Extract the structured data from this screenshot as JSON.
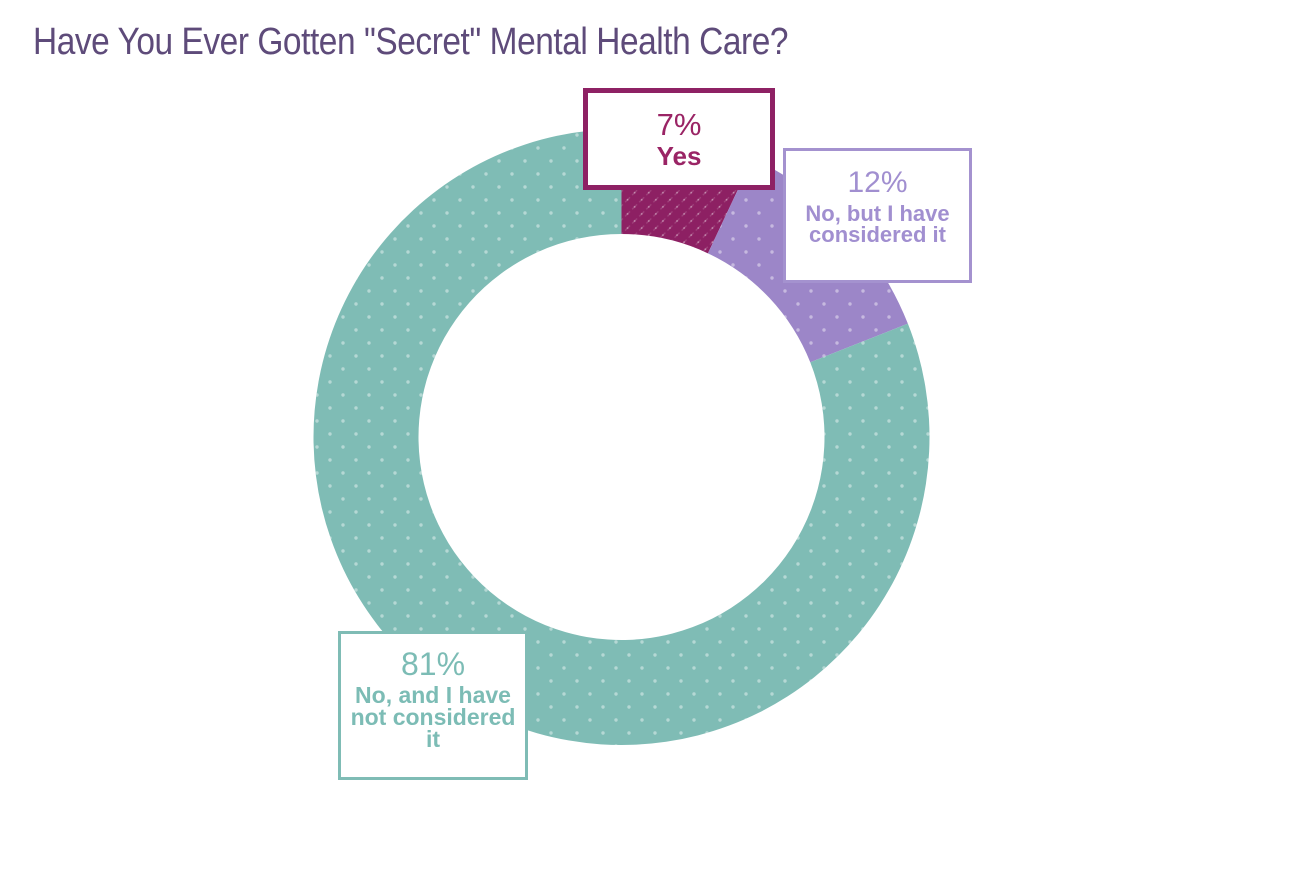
{
  "title": "Have You Ever Gotten \"Secret\" Mental Health Care?",
  "title_color": "#5e4b7a",
  "background_color": "#ffffff",
  "chart_data": {
    "type": "pie",
    "subtype": "donut",
    "title": "Have You Ever Gotten \"Secret\" Mental Health Care?",
    "start_angle_deg": 0,
    "direction": "clockwise",
    "inner_radius_ratio": 0.66,
    "legend_position": "callout-boxes-on-slices",
    "segments": [
      {
        "label": "Yes",
        "value": 7,
        "pct_label": "7%",
        "color": "#8d2063",
        "box_border_color": "#8e2164",
        "text_color": "#9a2465",
        "texture": "diagonal-hatch"
      },
      {
        "label": "No, but I have considered it",
        "value": 12,
        "pct_label": "12%",
        "color": "#9c86c8",
        "box_border_color": "#a492cf",
        "text_color": "#a18fd0",
        "texture": "dots"
      },
      {
        "label": "No, and I have not considered it",
        "value": 81,
        "pct_label": "81%",
        "color": "#7fbcb5",
        "box_border_color": "#7fbcb5",
        "text_color": "#7cbcb5",
        "texture": "dots"
      }
    ]
  }
}
